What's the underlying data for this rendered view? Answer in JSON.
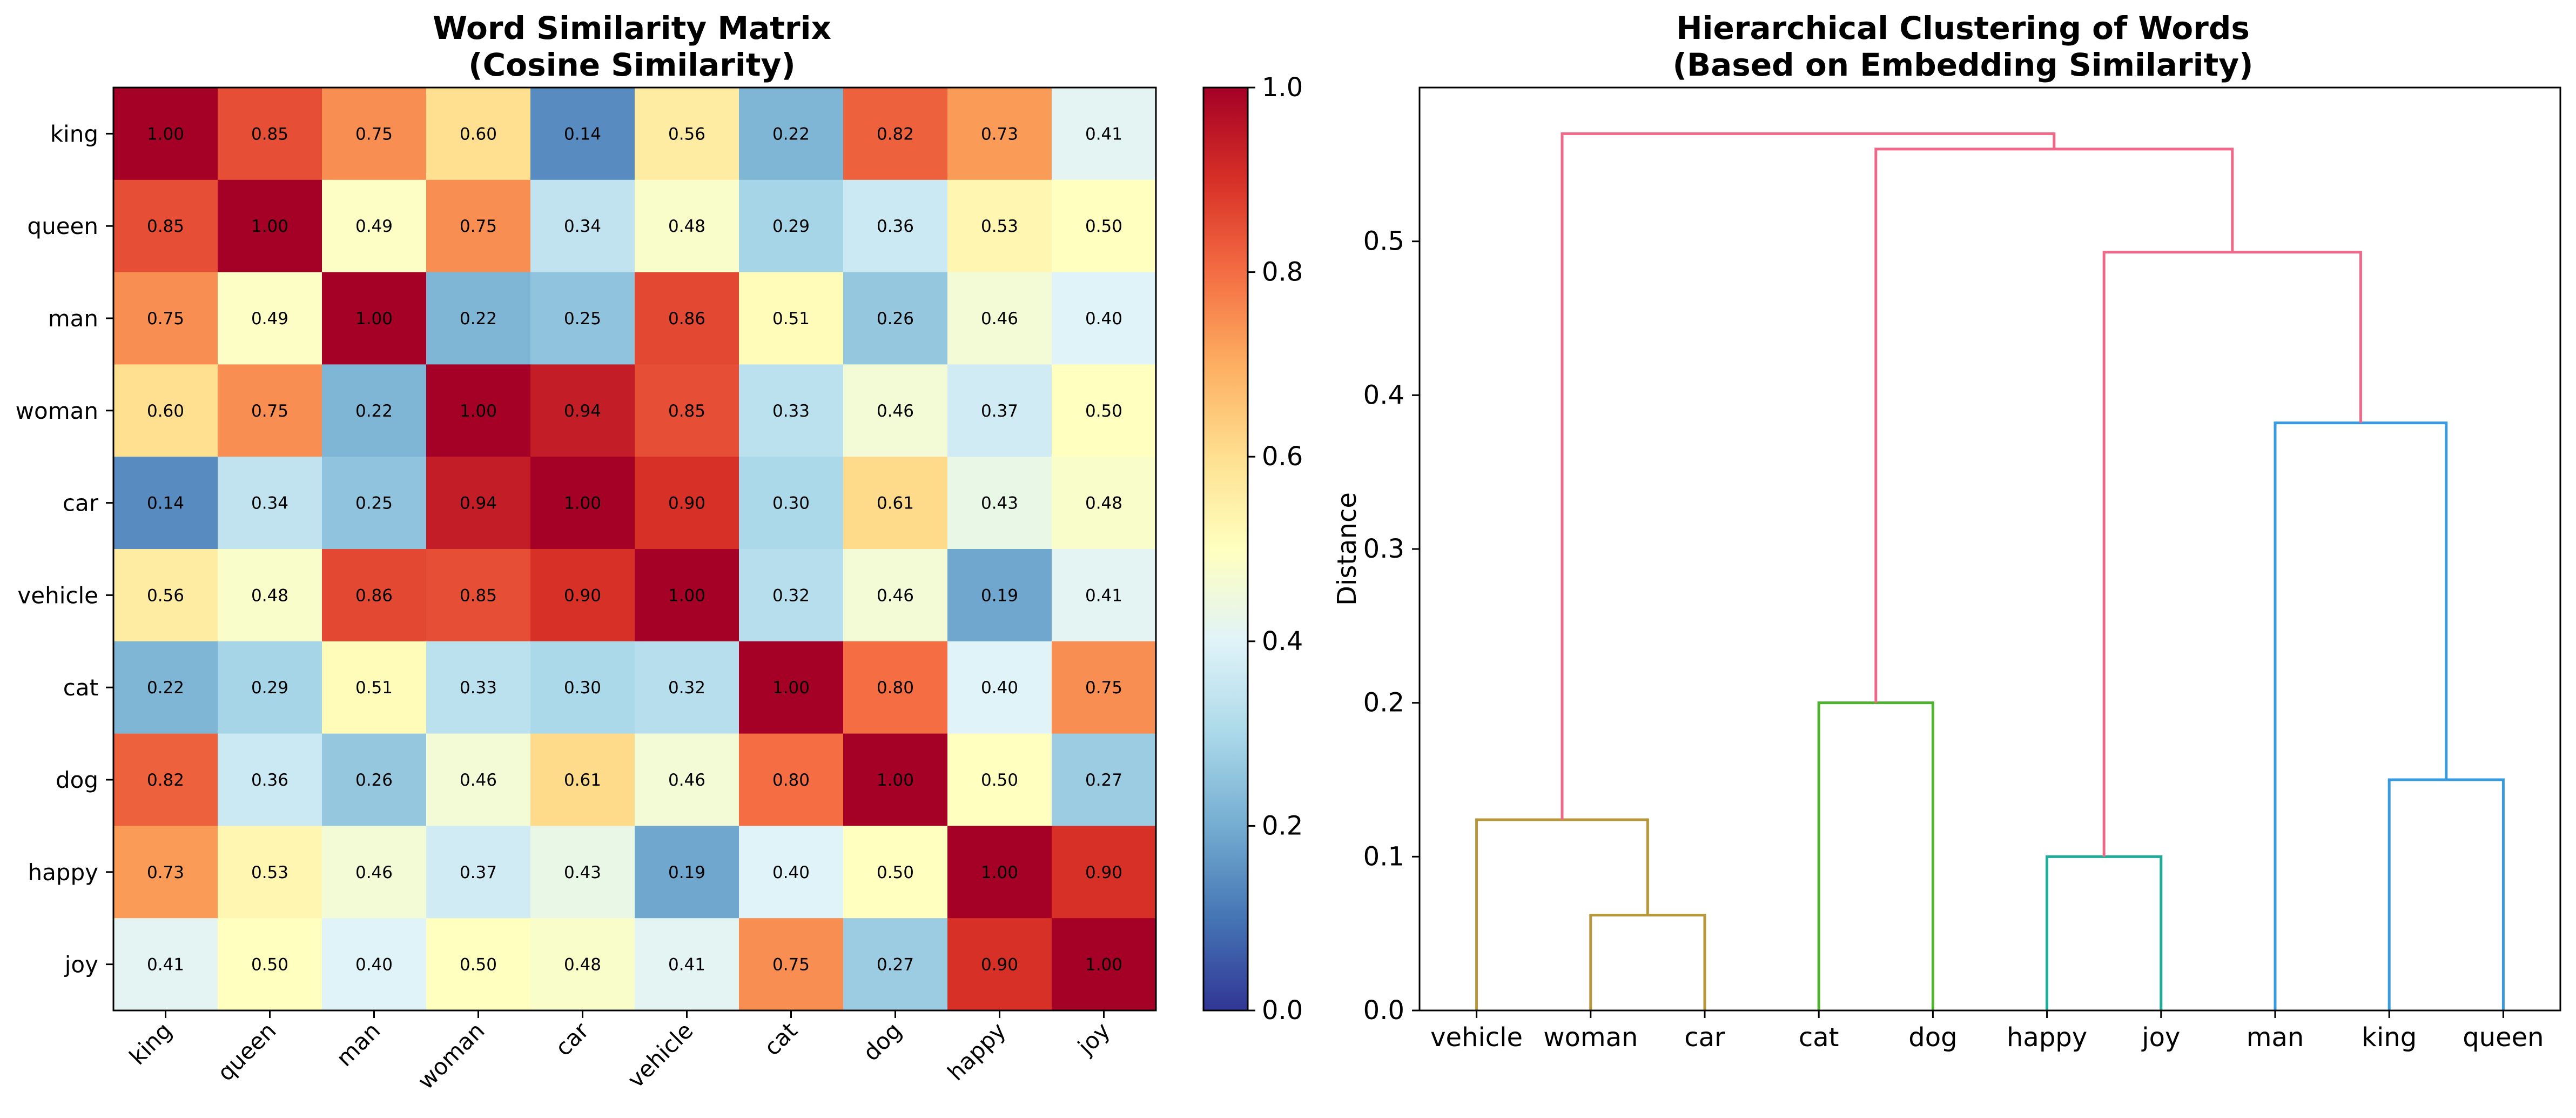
{
  "chart_data": [
    {
      "type": "heatmap",
      "title": "Word Similarity Matrix\n(Cosine Similarity)",
      "title_lines": [
        "Word Similarity Matrix",
        "(Cosine Similarity)"
      ],
      "x_labels": [
        "king",
        "queen",
        "man",
        "woman",
        "car",
        "vehicle",
        "cat",
        "dog",
        "happy",
        "joy"
      ],
      "y_labels": [
        "king",
        "queen",
        "man",
        "woman",
        "car",
        "vehicle",
        "cat",
        "dog",
        "happy",
        "joy"
      ],
      "values": [
        [
          1.0,
          0.85,
          0.75,
          0.6,
          0.14,
          0.56,
          0.22,
          0.82,
          0.73,
          0.41
        ],
        [
          0.85,
          1.0,
          0.49,
          0.75,
          0.34,
          0.48,
          0.29,
          0.36,
          0.53,
          0.5
        ],
        [
          0.75,
          0.49,
          1.0,
          0.22,
          0.25,
          0.86,
          0.51,
          0.26,
          0.46,
          0.4
        ],
        [
          0.6,
          0.75,
          0.22,
          1.0,
          0.94,
          0.85,
          0.33,
          0.46,
          0.37,
          0.5
        ],
        [
          0.14,
          0.34,
          0.25,
          0.94,
          1.0,
          0.9,
          0.3,
          0.61,
          0.43,
          0.48
        ],
        [
          0.56,
          0.48,
          0.86,
          0.85,
          0.9,
          1.0,
          0.32,
          0.46,
          0.19,
          0.41
        ],
        [
          0.22,
          0.29,
          0.51,
          0.33,
          0.3,
          0.32,
          1.0,
          0.8,
          0.4,
          0.75
        ],
        [
          0.82,
          0.36,
          0.26,
          0.46,
          0.61,
          0.46,
          0.8,
          1.0,
          0.5,
          0.27
        ],
        [
          0.73,
          0.53,
          0.46,
          0.37,
          0.43,
          0.19,
          0.4,
          0.5,
          1.0,
          0.9
        ],
        [
          0.41,
          0.5,
          0.4,
          0.5,
          0.48,
          0.41,
          0.75,
          0.27,
          0.9,
          1.0
        ]
      ],
      "colormap": "RdYlBu_r",
      "colorbar": {
        "range": [
          0,
          1
        ],
        "ticks": [
          "0.0",
          "0.2",
          "0.4",
          "0.6",
          "0.8",
          "1.0"
        ]
      }
    },
    {
      "type": "dendrogram",
      "title": "Hierarchical Clustering of Words\n(Based on Embedding Similarity)",
      "title_lines": [
        "Hierarchical Clustering of Words",
        "(Based on Embedding Similarity)"
      ],
      "ylabel": "Distance",
      "ylim": [
        0,
        0.6
      ],
      "y_ticks": [
        "0.0",
        "0.1",
        "0.2",
        "0.3",
        "0.4",
        "0.5"
      ],
      "leaves": [
        "vehicle",
        "woman",
        "car",
        "cat",
        "dog",
        "happy",
        "joy",
        "man",
        "king",
        "queen"
      ],
      "links": [
        {
          "left": 1,
          "right": 2,
          "height": 0.062,
          "color": "#b8963a"
        },
        {
          "left": 0,
          "right": "woman+car",
          "height": 0.124,
          "color": "#b8963a"
        },
        {
          "left": 3,
          "right": 4,
          "height": 0.2,
          "color": "#50b030"
        },
        {
          "left": 5,
          "right": 6,
          "height": 0.1,
          "color": "#20aa98"
        },
        {
          "left": 8,
          "right": 9,
          "height": 0.15,
          "color": "#3a9ae0"
        },
        {
          "left": 7,
          "right": "king+queen",
          "height": 0.382,
          "color": "#3a9ae0"
        },
        {
          "left": "happy+joy",
          "right": "man+king+queen",
          "height": 0.493,
          "color": "#f06888"
        },
        {
          "left": "cat+dog",
          "right": "happy+joy+man+king+queen",
          "height": 0.56,
          "color": "#f06888"
        },
        {
          "left": "vehicle+woman+car",
          "right": "rest",
          "height": 0.57,
          "color": "#f06888"
        }
      ]
    }
  ]
}
